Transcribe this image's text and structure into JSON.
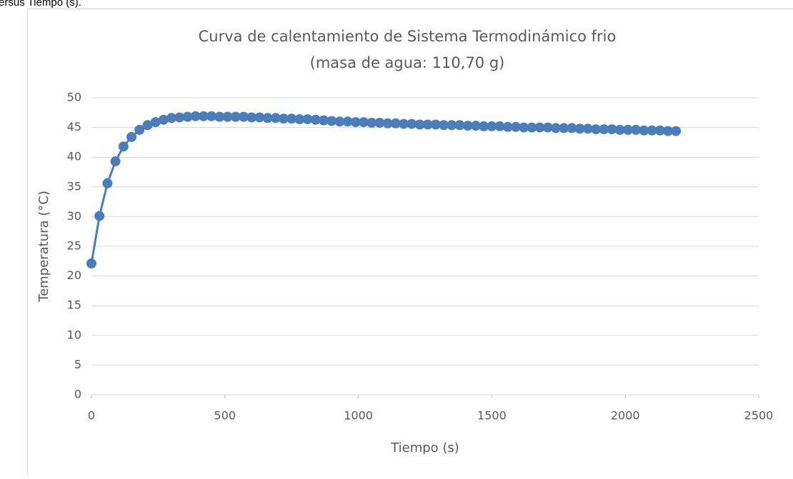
{
  "caption": "ersus Tiempo (s).",
  "chart_data": {
    "type": "scatter-line",
    "title": [
      "Curva de calentamiento de Sistema Termodinámico frio",
      "(masa de agua: 110,70 g)"
    ],
    "x_label": "Tiempo (s)",
    "y_label": "Temperatura (°C)",
    "x": [
      0,
      30,
      60,
      90,
      120,
      150,
      180,
      210,
      240,
      270,
      300,
      330,
      360,
      390,
      420,
      450,
      480,
      510,
      540,
      570,
      600,
      630,
      660,
      690,
      720,
      750,
      780,
      810,
      840,
      870,
      900,
      930,
      960,
      990,
      1020,
      1050,
      1080,
      1110,
      1140,
      1170,
      1200,
      1230,
      1260,
      1290,
      1320,
      1350,
      1380,
      1410,
      1440,
      1470,
      1500,
      1530,
      1560,
      1590,
      1620,
      1650,
      1680,
      1710,
      1740,
      1770,
      1800,
      1830,
      1860,
      1890,
      1920,
      1950,
      1980,
      2010,
      2040,
      2070,
      2100,
      2130,
      2160,
      2190
    ],
    "series": [
      {
        "color": "#4a7ebb",
        "values": [
          22.1,
          30.1,
          35.6,
          39.3,
          41.8,
          43.4,
          44.6,
          45.4,
          45.9,
          46.3,
          46.6,
          46.7,
          46.8,
          46.9,
          46.9,
          46.9,
          46.8,
          46.8,
          46.8,
          46.8,
          46.7,
          46.7,
          46.6,
          46.6,
          46.5,
          46.5,
          46.4,
          46.4,
          46.3,
          46.2,
          46.1,
          46.0,
          46.0,
          45.9,
          45.9,
          45.8,
          45.8,
          45.7,
          45.7,
          45.6,
          45.6,
          45.5,
          45.5,
          45.5,
          45.4,
          45.4,
          45.4,
          45.3,
          45.3,
          45.2,
          45.2,
          45.2,
          45.1,
          45.1,
          45.0,
          45.0,
          45.0,
          45.0,
          44.9,
          44.9,
          44.9,
          44.8,
          44.8,
          44.7,
          44.7,
          44.7,
          44.6,
          44.6,
          44.6,
          44.5,
          44.5,
          44.5,
          44.4,
          44.4
        ]
      }
    ],
    "xlim": [
      0,
      2500
    ],
    "xticks": [
      0,
      500,
      1000,
      1500,
      2000,
      2500
    ],
    "ylim": [
      0,
      50
    ],
    "yticks": [
      0,
      5,
      10,
      15,
      20,
      25,
      30,
      35,
      40,
      45,
      50
    ],
    "grid": true
  }
}
